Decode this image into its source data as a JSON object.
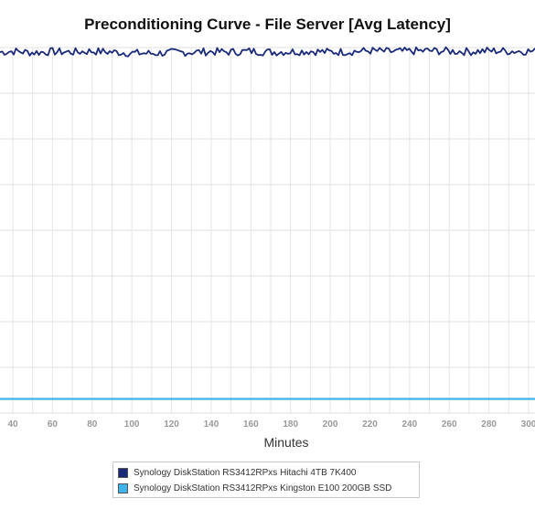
{
  "chart_data": {
    "type": "line",
    "title": "Preconditioning Curve - File Server [Avg Latency]",
    "xlabel": "Minutes",
    "ylabel": "",
    "x_ticks": [
      40,
      60,
      80,
      100,
      120,
      140,
      160,
      180,
      200,
      220,
      240,
      260,
      280,
      300
    ],
    "xlim": [
      34,
      310
    ],
    "ylim": [
      0,
      8
    ],
    "grid": true,
    "legend_position": "bottom-center",
    "series": [
      {
        "name": "Synology DiskStation RS3412RPxs Hitachi 4TB 7K400",
        "color": "#1a2a78",
        "x": [
          34,
          40,
          50,
          60,
          70,
          80,
          90,
          100,
          110,
          120,
          130,
          140,
          150,
          160,
          170,
          180,
          190,
          200,
          210,
          220,
          230,
          240,
          250,
          260,
          270,
          280,
          290,
          300,
          310
        ],
        "values": [
          7.9,
          7.92,
          7.89,
          7.91,
          7.9,
          7.92,
          7.9,
          7.88,
          7.87,
          7.89,
          7.9,
          7.91,
          7.9,
          7.92,
          7.9,
          7.91,
          7.92,
          7.9,
          7.91,
          7.93,
          7.91,
          7.92,
          7.93,
          7.92,
          7.91,
          7.93,
          7.92,
          7.92,
          7.9
        ]
      },
      {
        "name": "Synology DiskStation RS3412RPxs Kingston E100 200GB SSD",
        "color": "#3db4ea",
        "x": [
          34,
          310
        ],
        "values": [
          0.31,
          0.31
        ]
      }
    ]
  }
}
